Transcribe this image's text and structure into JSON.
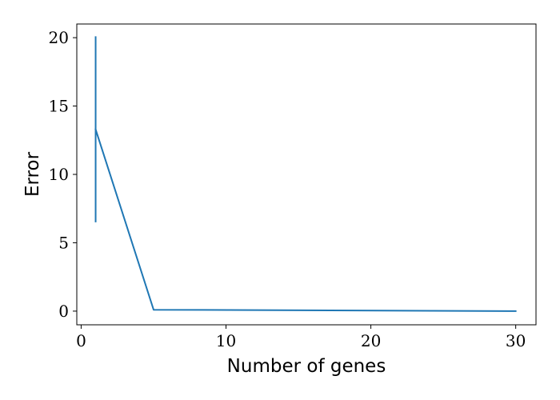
{
  "chart_data": {
    "type": "line",
    "title": "",
    "xlabel": "Number of genes",
    "ylabel": "Error",
    "xlim": [
      -0.3,
      31.4
    ],
    "ylim": [
      -1.0,
      21.0
    ],
    "xticks": [
      0,
      10,
      20,
      30
    ],
    "yticks": [
      0,
      5,
      10,
      15,
      20
    ],
    "series": [
      {
        "name": "error",
        "color": "#1f77b4",
        "x": [
          1,
          5,
          30
        ],
        "y": [
          13.3,
          0.1,
          0.0
        ],
        "err_low": [
          6.5,
          0.1,
          0.0
        ],
        "err_high": [
          20.1,
          0.1,
          0.0
        ]
      }
    ],
    "grid": false,
    "legend": null
  }
}
